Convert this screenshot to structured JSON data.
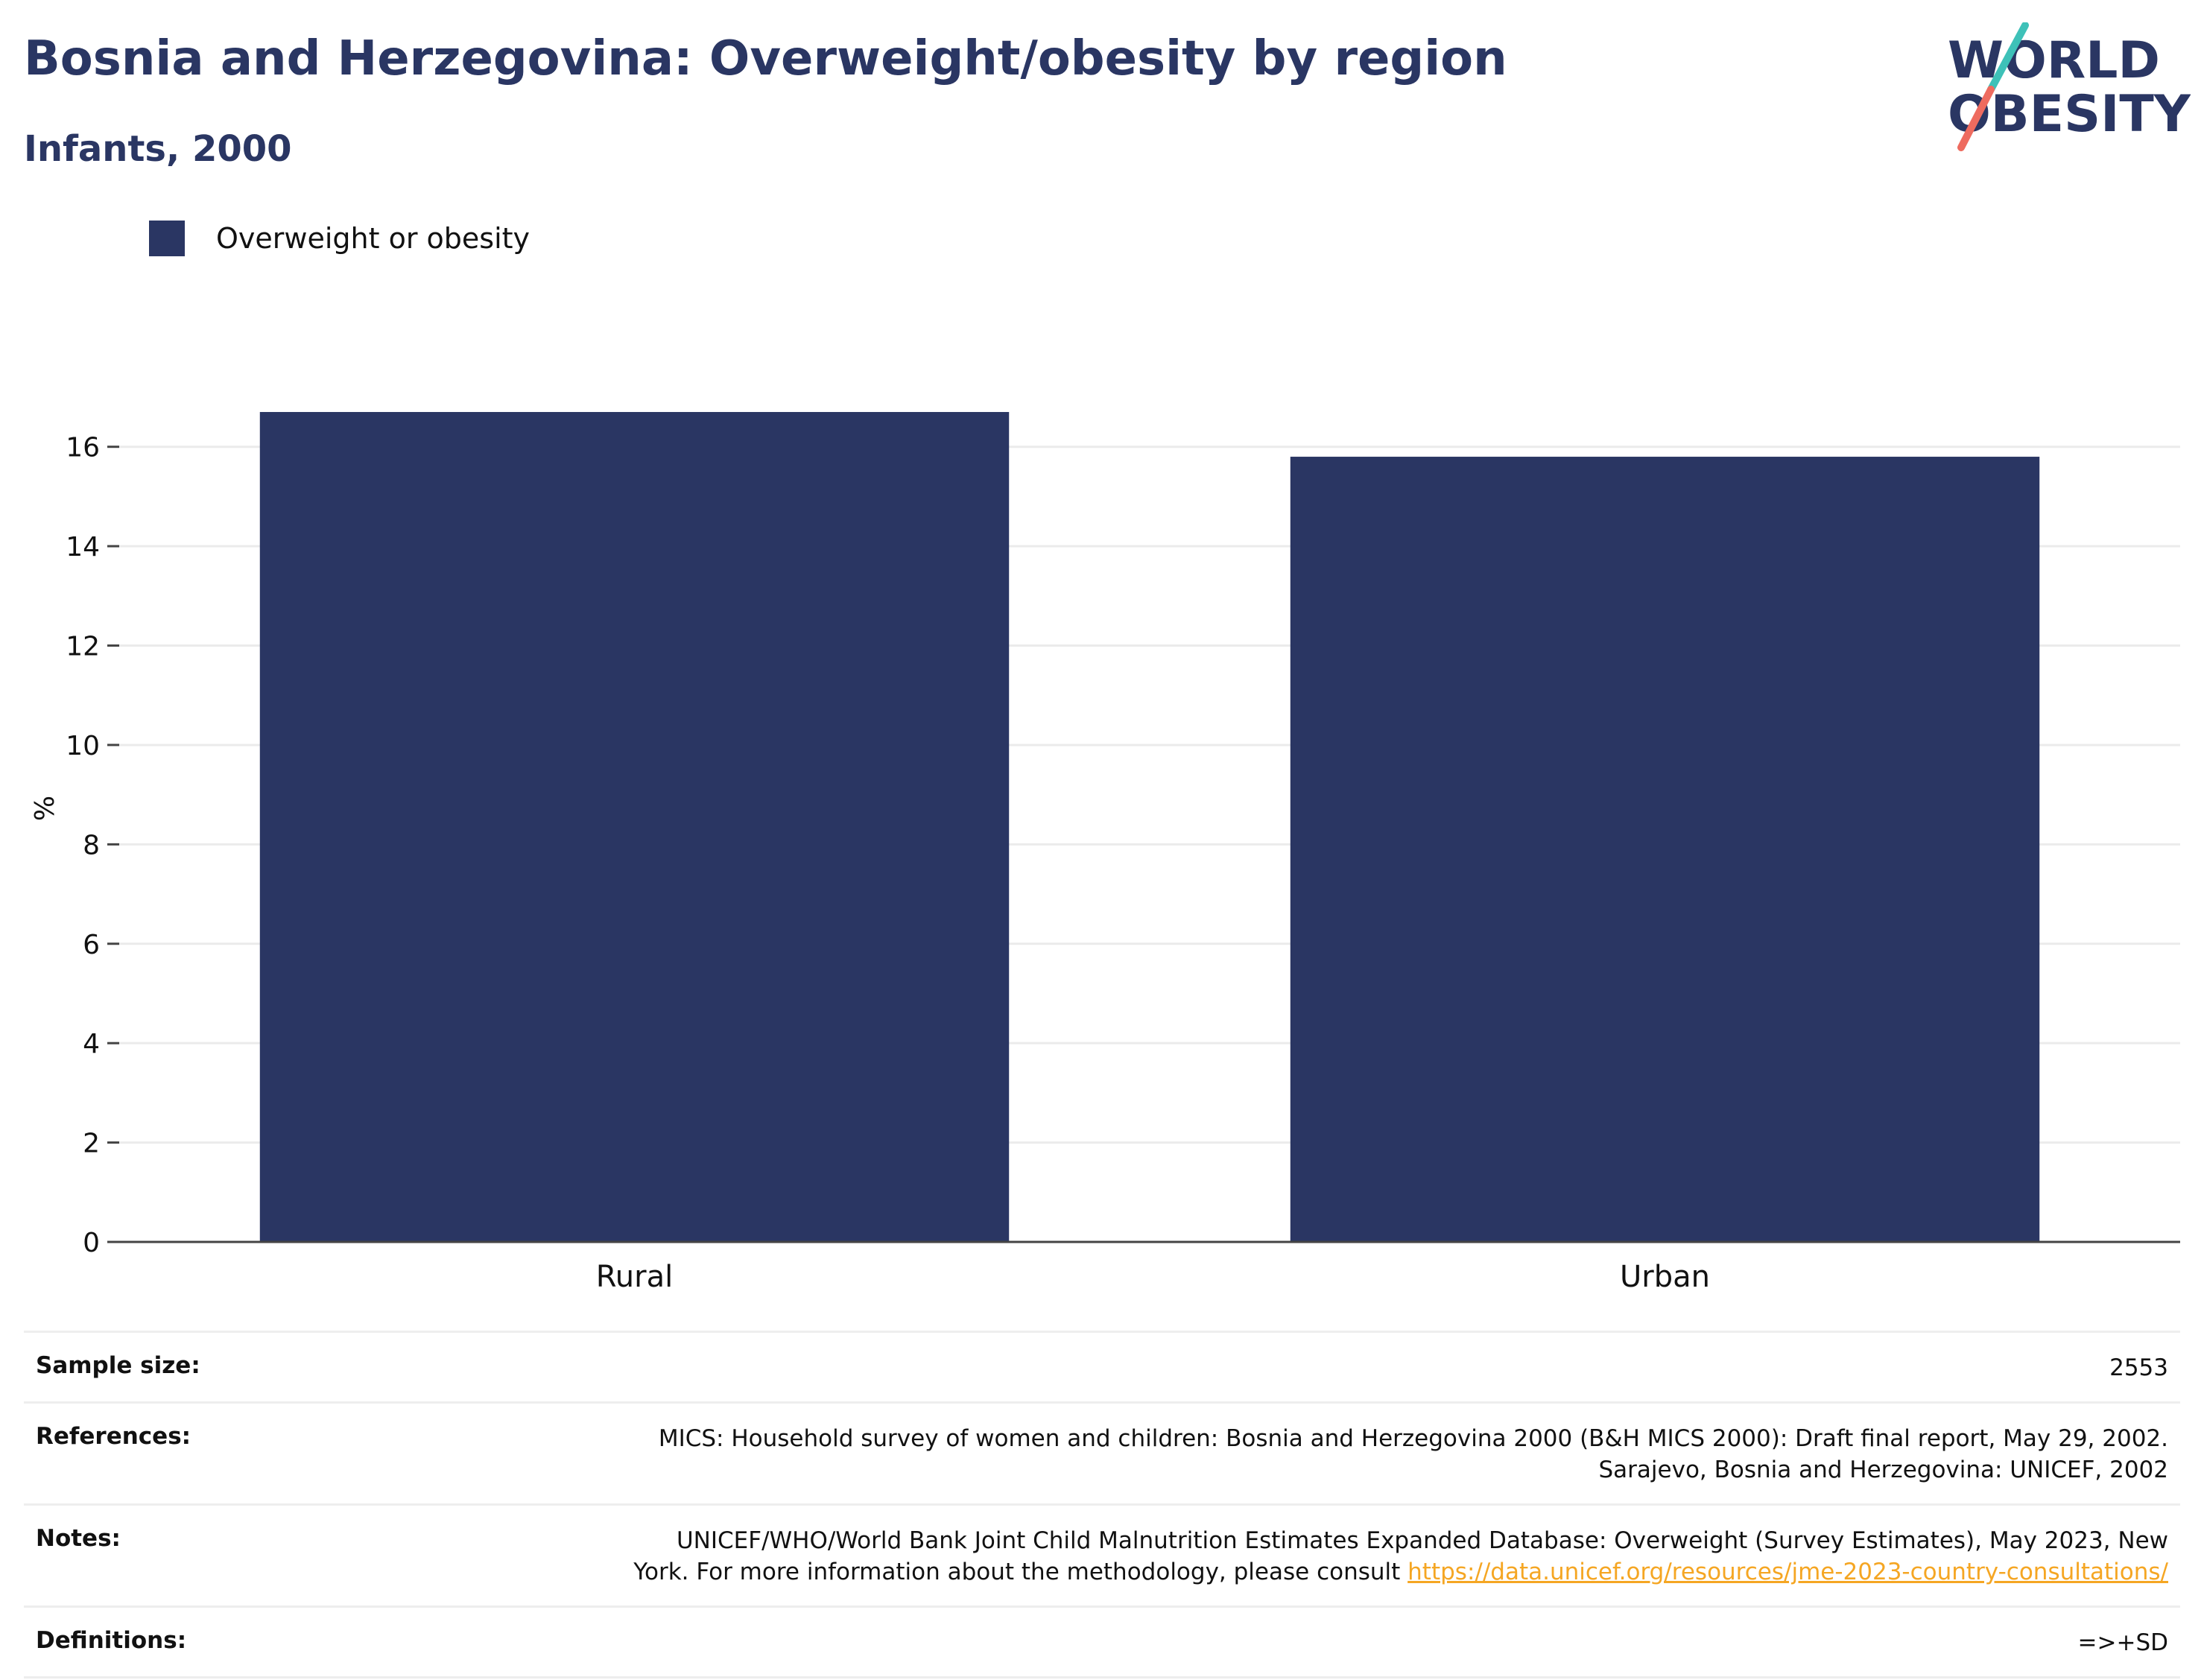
{
  "title": "Bosnia and Herzegovina: Overweight/obesity by region",
  "subtitle": "Infants, 2000",
  "logo": {
    "line1": "WORLD",
    "line2": "OBESITY",
    "colors": {
      "text": "#2a3663",
      "slash_top": "#3ec1b8",
      "slash_bottom": "#ee6b5f"
    }
  },
  "legend": {
    "label": "Overweight or obesity",
    "color": "#2a3663"
  },
  "chart_data": {
    "type": "bar",
    "categories": [
      "Rural",
      "Urban"
    ],
    "series": [
      {
        "name": "Overweight or obesity",
        "values": [
          16.7,
          15.8
        ]
      }
    ],
    "ylabel": "%",
    "xlabel": "",
    "ylim": [
      0,
      17
    ],
    "yticks": [
      0,
      2,
      4,
      6,
      8,
      10,
      12,
      14,
      16
    ],
    "grid": true,
    "legend_position": "top-left",
    "bar_color": "#2a3663"
  },
  "info": {
    "sample_size": {
      "label": "Sample size:",
      "value": "2553"
    },
    "references": {
      "label": "References:",
      "line1": "MICS: Household survey of women and children: Bosnia and Herzegovina 2000 (B&H MICS 2000): Draft final report, May 29, 2002.",
      "line2": "Sarajevo, Bosnia and Herzegovina: UNICEF, 2002"
    },
    "notes": {
      "label": "Notes:",
      "line1": "UNICEF/WHO/World Bank Joint Child Malnutrition Estimates Expanded Database: Overweight (Survey Estimates), May 2023, New",
      "line2": "York. For more information about the methodology, please consult",
      "link": "https://data.unicef.org/resources/jme-2023-country-consultations/"
    },
    "definitions": {
      "label": "Definitions:",
      "value": "=>+SD"
    }
  }
}
